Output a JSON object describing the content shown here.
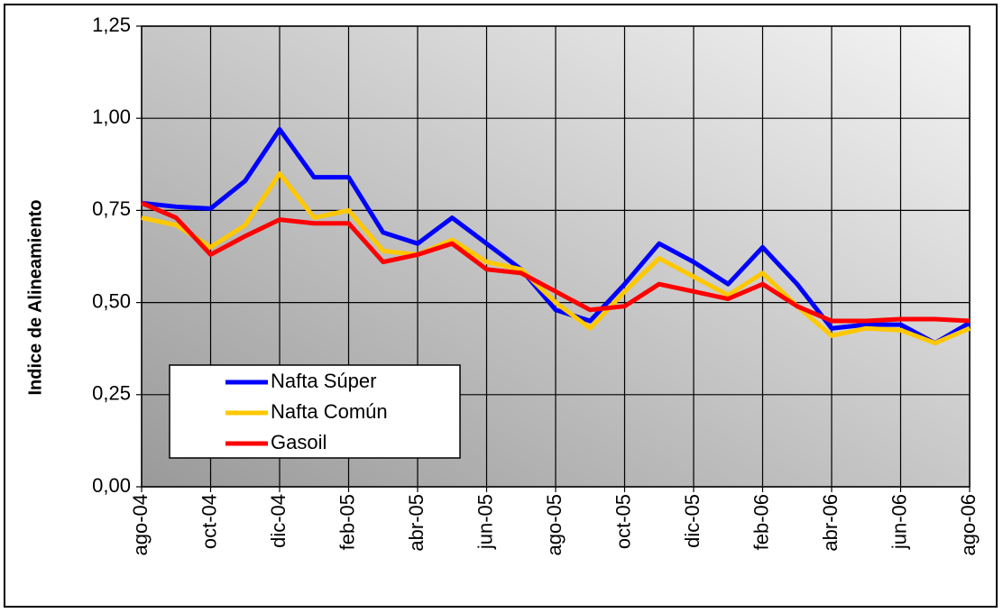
{
  "chart_data": {
    "type": "line",
    "y_label": "Indice de Alineamiento",
    "categories": [
      "ago-04",
      null,
      "oct-04",
      null,
      "dic-04",
      null,
      "feb-05",
      null,
      "abr-05",
      null,
      "jun-05",
      null,
      "ago-05",
      null,
      "oct-05",
      null,
      "dic-05",
      null,
      "feb-06",
      null,
      "abr-06",
      null,
      "jun-06",
      null,
      "ago-06"
    ],
    "series": [
      {
        "name": "Nafta Súper",
        "color": "#0000ff",
        "values": [
          0.77,
          0.76,
          0.755,
          0.83,
          0.97,
          0.84,
          0.84,
          0.69,
          0.66,
          0.73,
          0.66,
          0.59,
          0.48,
          0.45,
          0.55,
          0.66,
          0.61,
          0.55,
          0.65,
          0.55,
          0.43,
          0.44,
          0.44,
          0.39,
          0.445
        ]
      },
      {
        "name": "Nafta Común",
        "color": "#ffc800",
        "values": [
          0.73,
          0.71,
          0.65,
          0.71,
          0.85,
          0.73,
          0.75,
          0.64,
          0.63,
          0.67,
          0.61,
          0.59,
          0.5,
          0.43,
          0.53,
          0.62,
          0.57,
          0.52,
          0.58,
          0.49,
          0.41,
          0.43,
          0.425,
          0.39,
          0.43
        ]
      },
      {
        "name": "Gasoil",
        "color": "#ff0000",
        "values": [
          0.77,
          0.73,
          0.63,
          0.68,
          0.725,
          0.715,
          0.715,
          0.61,
          0.63,
          0.66,
          0.59,
          0.58,
          0.53,
          0.48,
          0.49,
          0.55,
          0.53,
          0.51,
          0.55,
          0.49,
          0.45,
          0.45,
          0.455,
          0.455,
          0.45
        ]
      }
    ],
    "ylim": [
      0,
      1.25
    ],
    "yticks": [
      {
        "value": 0,
        "label": "0,00"
      },
      {
        "value": 0.25,
        "label": "0,25"
      },
      {
        "value": 0.5,
        "label": "0,50"
      },
      {
        "value": 0.75,
        "label": "0,75"
      },
      {
        "value": 1,
        "label": "1,00"
      },
      {
        "value": 1.25,
        "label": "1,25"
      }
    ],
    "grid": true,
    "legend": "lower-left"
  }
}
